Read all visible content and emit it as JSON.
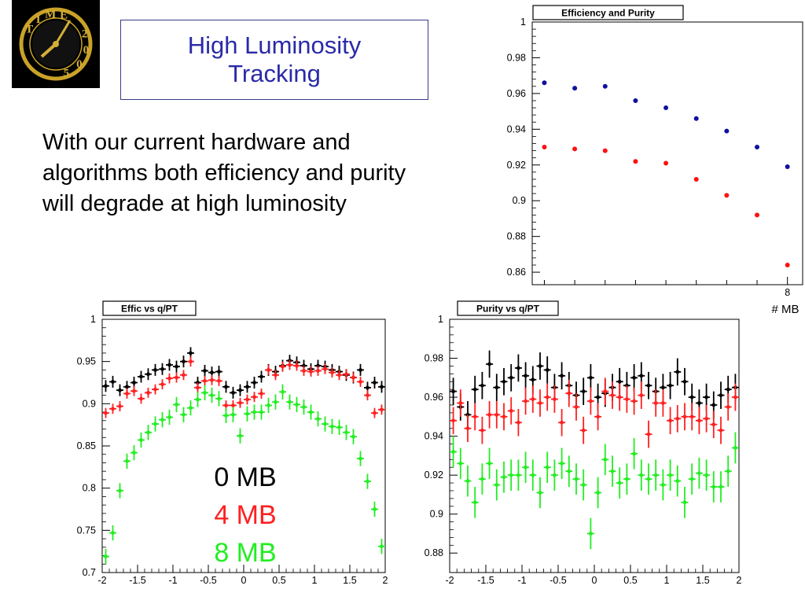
{
  "slide": {
    "title": "High Luminosity\nTracking",
    "body": "With our current hardware and algorithms both efficiency and purity will degrade at high luminosity"
  },
  "logo": {
    "ring_text": [
      "T",
      "I",
      "M",
      "E",
      "2",
      "0",
      "0",
      "5"
    ]
  },
  "legend": {
    "entries": [
      {
        "label": "0 MB",
        "color": "#000000"
      },
      {
        "label": "4 MB",
        "color": "#ff2020"
      },
      {
        "label": "8 MB",
        "color": "#22ee22"
      }
    ]
  },
  "chart_data": [
    {
      "type": "scatter",
      "title": "Efficiency and Purity",
      "xlabel": "# MB",
      "ylabel": "",
      "x_ticks": [
        "8"
      ],
      "y_ticks": [
        1,
        0.98,
        0.96,
        0.94,
        0.92,
        0.9,
        0.88,
        0.86
      ],
      "ylim": [
        0.853,
        1.0
      ],
      "xlim": [
        -0.4,
        8.5
      ],
      "series": [
        {
          "color": "#1010a0",
          "x": [
            0,
            1,
            2,
            3,
            4,
            5,
            6,
            7,
            8
          ],
          "y": [
            0.966,
            0.963,
            0.964,
            0.956,
            0.952,
            0.946,
            0.939,
            0.93,
            0.919
          ]
        },
        {
          "color": "#ff1010",
          "x": [
            0,
            1,
            2,
            3,
            4,
            5,
            6,
            7,
            8
          ],
          "y": [
            0.93,
            0.929,
            0.928,
            0.922,
            0.921,
            0.912,
            0.903,
            0.892,
            0.864
          ]
        }
      ]
    },
    {
      "type": "scatter",
      "title": "Effic vs q/PT",
      "xlabel": "",
      "ylabel": "",
      "x_ticks": [
        "-2",
        "-1.5",
        "-1",
        "-0.5",
        "0",
        "0.5",
        "1",
        "1.5",
        "2"
      ],
      "y_ticks": [
        "1",
        "0.95",
        "0.9",
        "0.85",
        "0.8",
        "0.75",
        "0.7"
      ],
      "xlim": [
        -2,
        2
      ],
      "ylim": [
        0.7,
        1.0
      ],
      "series": [
        {
          "color": "#000000",
          "err": 0.007,
          "x": [
            -1.95,
            -1.85,
            -1.75,
            -1.65,
            -1.55,
            -1.45,
            -1.35,
            -1.25,
            -1.15,
            -1.05,
            -0.95,
            -0.85,
            -0.75,
            -0.65,
            -0.55,
            -0.45,
            -0.35,
            -0.25,
            -0.15,
            -0.05,
            0.05,
            0.15,
            0.25,
            0.35,
            0.45,
            0.55,
            0.65,
            0.75,
            0.85,
            0.95,
            1.05,
            1.15,
            1.25,
            1.35,
            1.45,
            1.55,
            1.65,
            1.75,
            1.85,
            1.95
          ],
          "y": [
            0.921,
            0.926,
            0.916,
            0.92,
            0.925,
            0.932,
            0.935,
            0.94,
            0.941,
            0.946,
            0.944,
            0.95,
            0.96,
            0.925,
            0.939,
            0.937,
            0.938,
            0.92,
            0.913,
            0.916,
            0.92,
            0.925,
            0.932,
            0.94,
            0.938,
            0.945,
            0.951,
            0.949,
            0.945,
            0.941,
            0.945,
            0.944,
            0.94,
            0.938,
            0.934,
            0.931,
            0.94,
            0.919,
            0.925,
            0.92
          ]
        },
        {
          "color": "#ff2020",
          "err": 0.006,
          "x": [
            -1.95,
            -1.85,
            -1.75,
            -1.65,
            -1.55,
            -1.45,
            -1.35,
            -1.25,
            -1.15,
            -1.05,
            -0.95,
            -0.85,
            -0.75,
            -0.65,
            -0.55,
            -0.45,
            -0.35,
            -0.25,
            -0.15,
            -0.05,
            0.05,
            0.15,
            0.25,
            0.35,
            0.45,
            0.55,
            0.65,
            0.75,
            0.85,
            0.95,
            1.05,
            1.15,
            1.25,
            1.35,
            1.45,
            1.55,
            1.65,
            1.75,
            1.85,
            1.95
          ],
          "y": [
            0.889,
            0.894,
            0.897,
            0.912,
            0.915,
            0.906,
            0.913,
            0.917,
            0.923,
            0.93,
            0.931,
            0.934,
            0.95,
            0.919,
            0.927,
            0.928,
            0.927,
            0.898,
            0.898,
            0.901,
            0.905,
            0.908,
            0.912,
            0.94,
            0.934,
            0.944,
            0.946,
            0.945,
            0.939,
            0.938,
            0.939,
            0.941,
            0.937,
            0.934,
            0.935,
            0.931,
            0.926,
            0.91,
            0.889,
            0.893
          ]
        },
        {
          "color": "#22ee22",
          "err": 0.009,
          "x": [
            -1.95,
            -1.85,
            -1.75,
            -1.65,
            -1.55,
            -1.45,
            -1.35,
            -1.25,
            -1.15,
            -1.05,
            -0.95,
            -0.85,
            -0.75,
            -0.65,
            -0.55,
            -0.45,
            -0.35,
            -0.25,
            -0.15,
            -0.05,
            0.05,
            0.15,
            0.25,
            0.35,
            0.45,
            0.55,
            0.65,
            0.75,
            0.85,
            0.95,
            1.05,
            1.15,
            1.25,
            1.35,
            1.45,
            1.55,
            1.65,
            1.75,
            1.85,
            1.95
          ],
          "y": [
            0.719,
            0.747,
            0.797,
            0.832,
            0.842,
            0.857,
            0.866,
            0.876,
            0.881,
            0.884,
            0.899,
            0.887,
            0.895,
            0.905,
            0.913,
            0.91,
            0.906,
            0.886,
            0.887,
            0.862,
            0.888,
            0.89,
            0.89,
            0.898,
            0.902,
            0.914,
            0.902,
            0.899,
            0.896,
            0.89,
            0.882,
            0.876,
            0.873,
            0.872,
            0.866,
            0.861,
            0.835,
            0.808,
            0.775,
            0.731
          ]
        }
      ]
    },
    {
      "type": "scatter",
      "title": "Purity vs q/PT",
      "xlabel": "",
      "ylabel": "",
      "x_ticks": [
        "-2",
        "-1.5",
        "-1",
        "-0.5",
        "0",
        "0.5",
        "1",
        "1.5",
        "2"
      ],
      "y_ticks": [
        "1",
        "0.98",
        "0.96",
        "0.94",
        "0.92",
        "0.9",
        "0.88"
      ],
      "xlim": [
        -2,
        2
      ],
      "ylim": [
        0.87,
        1.0
      ],
      "series": [
        {
          "color": "#000000",
          "err": 0.007,
          "x": [
            -1.95,
            -1.85,
            -1.75,
            -1.65,
            -1.55,
            -1.45,
            -1.35,
            -1.25,
            -1.15,
            -1.05,
            -0.95,
            -0.85,
            -0.75,
            -0.65,
            -0.55,
            -0.45,
            -0.35,
            -0.25,
            -0.15,
            -0.05,
            0.05,
            0.15,
            0.25,
            0.35,
            0.45,
            0.55,
            0.65,
            0.75,
            0.85,
            0.95,
            1.05,
            1.15,
            1.25,
            1.35,
            1.45,
            1.55,
            1.65,
            1.75,
            1.85,
            1.95
          ],
          "y": [
            0.963,
            0.955,
            0.951,
            0.964,
            0.966,
            0.977,
            0.965,
            0.968,
            0.97,
            0.975,
            0.971,
            0.969,
            0.976,
            0.974,
            0.965,
            0.971,
            0.966,
            0.961,
            0.963,
            0.97,
            0.96,
            0.962,
            0.965,
            0.968,
            0.966,
            0.97,
            0.971,
            0.966,
            0.963,
            0.965,
            0.966,
            0.973,
            0.968,
            0.96,
            0.957,
            0.96,
            0.956,
            0.961,
            0.964,
            0.965
          ]
        },
        {
          "color": "#ff2020",
          "err": 0.007,
          "x": [
            -1.95,
            -1.85,
            -1.75,
            -1.65,
            -1.55,
            -1.45,
            -1.35,
            -1.25,
            -1.15,
            -1.05,
            -0.95,
            -0.85,
            -0.75,
            -0.65,
            -0.55,
            -0.45,
            -0.35,
            -0.25,
            -0.15,
            -0.05,
            0.05,
            0.15,
            0.25,
            0.35,
            0.45,
            0.55,
            0.65,
            0.75,
            0.85,
            0.95,
            1.05,
            1.15,
            1.25,
            1.35,
            1.45,
            1.55,
            1.65,
            1.75,
            1.85,
            1.95
          ],
          "y": [
            0.948,
            0.957,
            0.944,
            0.95,
            0.943,
            0.951,
            0.951,
            0.95,
            0.953,
            0.947,
            0.958,
            0.959,
            0.957,
            0.96,
            0.959,
            0.947,
            0.962,
            0.955,
            0.943,
            0.958,
            0.95,
            0.963,
            0.961,
            0.96,
            0.959,
            0.958,
            0.961,
            0.941,
            0.957,
            0.957,
            0.948,
            0.949,
            0.95,
            0.95,
            0.948,
            0.949,
            0.946,
            0.943,
            0.955,
            0.96
          ]
        },
        {
          "color": "#22ee22",
          "err": 0.008,
          "x": [
            -1.95,
            -1.85,
            -1.75,
            -1.65,
            -1.55,
            -1.45,
            -1.35,
            -1.25,
            -1.15,
            -1.05,
            -0.95,
            -0.85,
            -0.75,
            -0.65,
            -0.55,
            -0.45,
            -0.35,
            -0.25,
            -0.15,
            -0.05,
            0.05,
            0.15,
            0.25,
            0.35,
            0.45,
            0.55,
            0.65,
            0.75,
            0.85,
            0.95,
            1.05,
            1.15,
            1.25,
            1.35,
            1.45,
            1.55,
            1.65,
            1.75,
            1.85,
            1.95
          ],
          "y": [
            0.932,
            0.926,
            0.917,
            0.906,
            0.918,
            0.926,
            0.915,
            0.919,
            0.92,
            0.92,
            0.924,
            0.92,
            0.911,
            0.924,
            0.92,
            0.926,
            0.922,
            0.918,
            0.915,
            0.89,
            0.911,
            0.928,
            0.922,
            0.916,
            0.918,
            0.931,
            0.92,
            0.918,
            0.92,
            0.915,
            0.92,
            0.917,
            0.906,
            0.918,
            0.921,
            0.92,
            0.914,
            0.914,
            0.922,
            0.934
          ]
        }
      ]
    }
  ]
}
